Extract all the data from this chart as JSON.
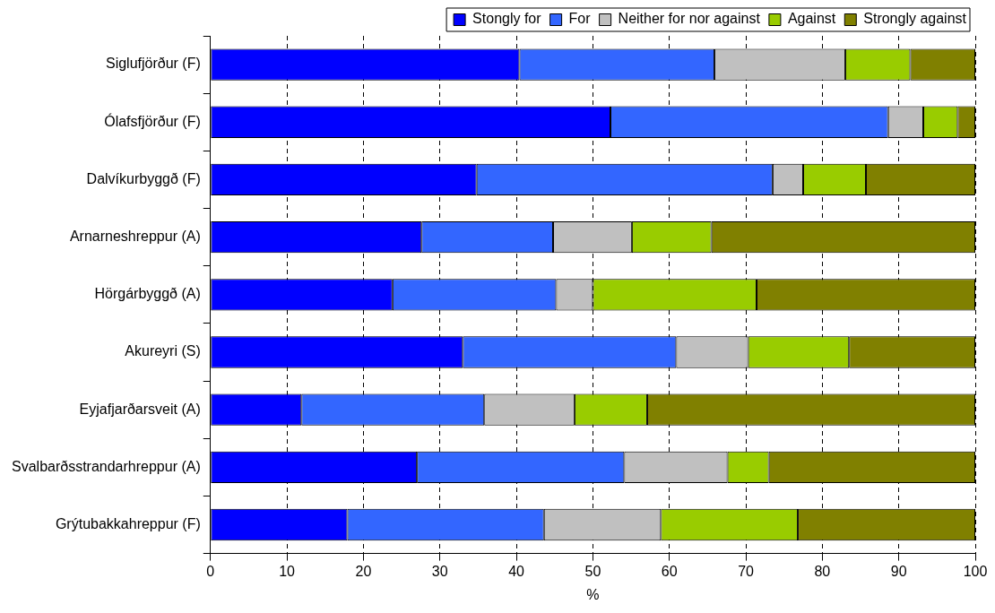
{
  "chart_data": {
    "type": "bar",
    "orientation": "horizontal",
    "stacked": true,
    "xlabel": "%",
    "categories": [
      "Siglufjörður (F)",
      "Ólafsfjörður (F)",
      "Dalvíkurbyggð (F)",
      "Arnarneshreppur (A)",
      "Hörgárbyggð (A)",
      "Akureyri (S)",
      "Eyjafjarðarsveit (A)",
      "Svalbarðsstrandarhreppur (A)",
      "Grýtubakkahreppur (F)"
    ],
    "series": [
      {
        "name": "Stongly for",
        "color": "#0000ff",
        "values": [
          40.4,
          52.3,
          34.8,
          27.6,
          23.8,
          33.0,
          11.9,
          27.0,
          17.9
        ]
      },
      {
        "name": "For",
        "color": "#3366ff",
        "values": [
          25.5,
          36.3,
          38.7,
          17.2,
          21.4,
          27.9,
          23.9,
          27.1,
          25.7
        ]
      },
      {
        "name": "Neither for nor against",
        "color": "#c0c0c0",
        "values": [
          17.1,
          4.6,
          4.0,
          10.3,
          4.8,
          9.4,
          11.8,
          13.5,
          15.3
        ]
      },
      {
        "name": "Against",
        "color": "#99cc00",
        "values": [
          8.5,
          4.5,
          8.2,
          10.4,
          21.4,
          13.2,
          9.5,
          5.4,
          17.9
        ]
      },
      {
        "name": "Strongly against",
        "color": "#808000",
        "values": [
          8.5,
          2.3,
          14.3,
          34.5,
          28.6,
          16.5,
          42.9,
          27.0,
          23.2
        ]
      }
    ],
    "xlim": [
      0,
      100
    ],
    "xticks": [
      0,
      10,
      20,
      30,
      40,
      50,
      60,
      70,
      80,
      90,
      100
    ],
    "grid": "x",
    "line_style": "dashed",
    "legend": "top right"
  }
}
